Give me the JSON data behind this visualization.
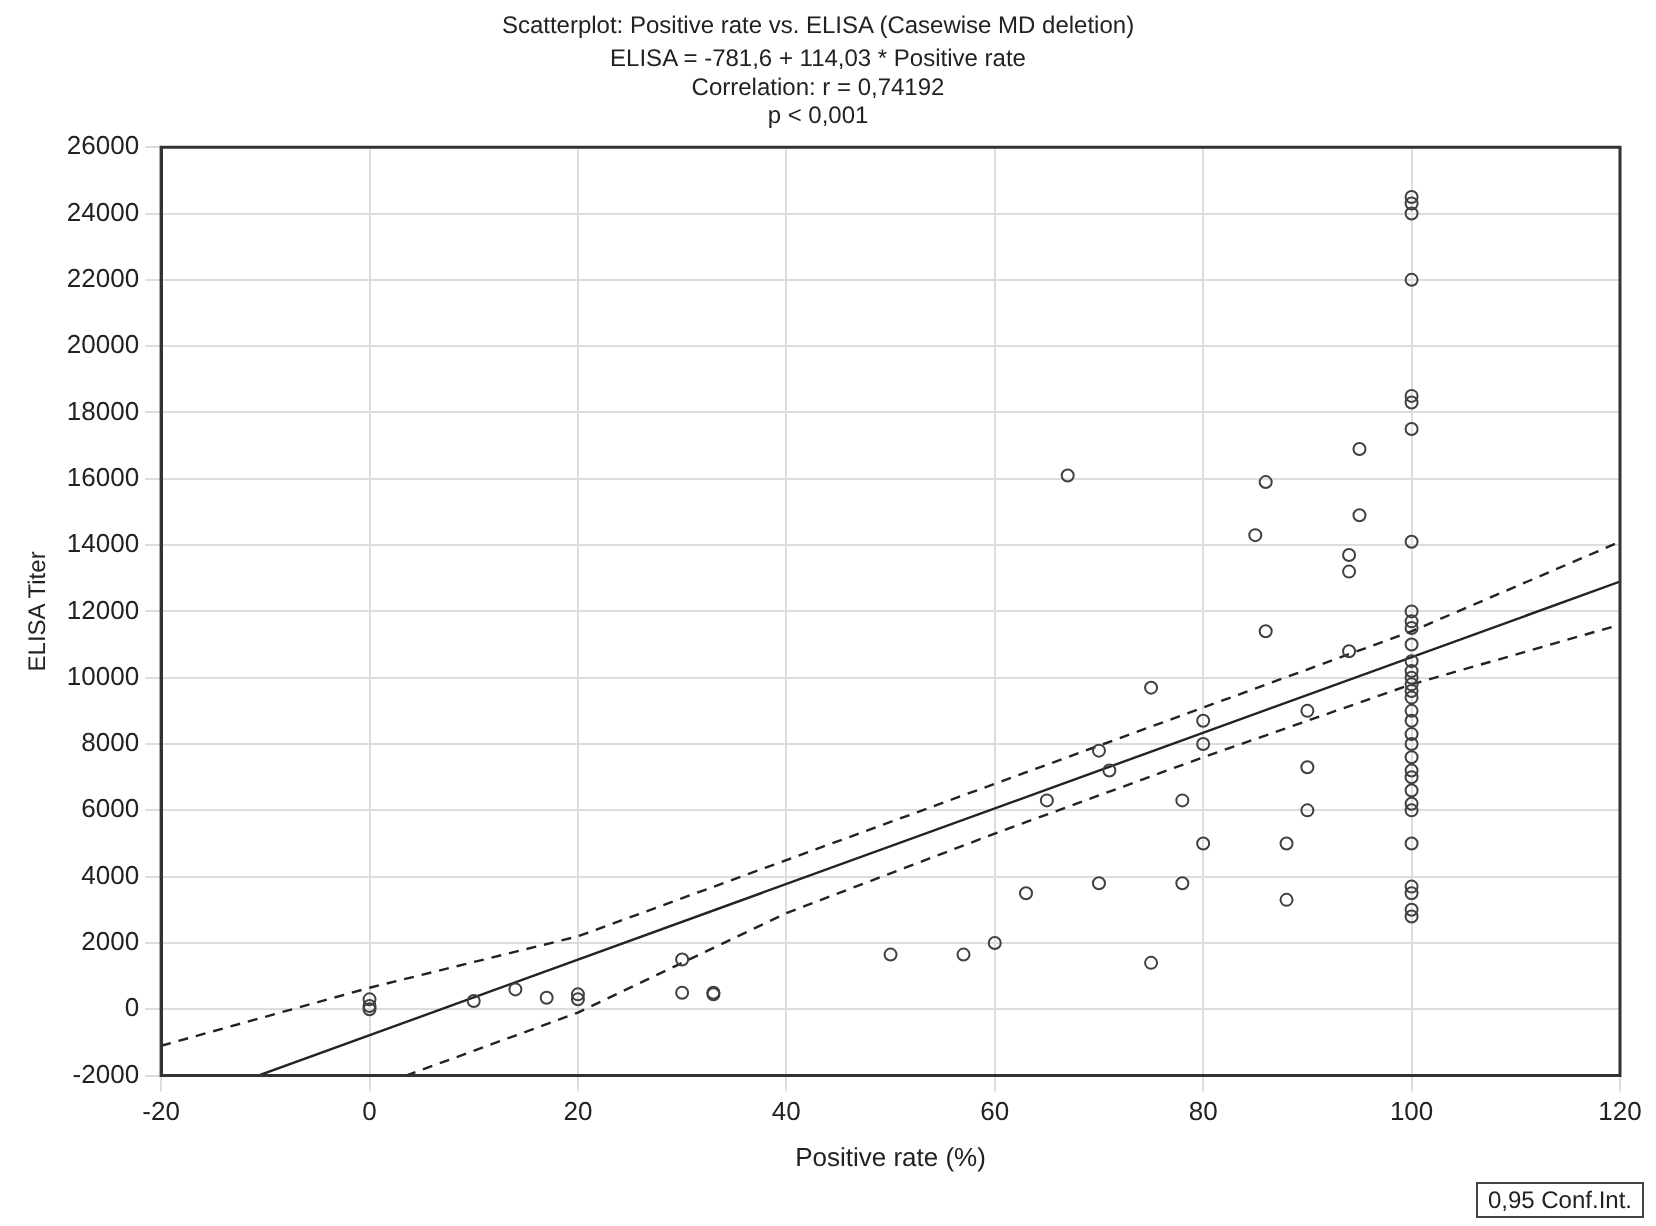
{
  "chart_data": {
    "type": "scatter",
    "title": "Scatterplot: Positive rate vs. ELISA (Casewise MD deletion)",
    "subtitle": "ELISA = -781,6 + 114,03 * Positive rate",
    "annotations": [
      "Correlation: r = 0,74192",
      "p < 0,001",
      "0,95 Conf.Int."
    ],
    "xlabel": "Positive rate (%)",
    "ylabel": "ELISA Titer",
    "xlim": [
      -20,
      120
    ],
    "xticks": [
      -20,
      0,
      20,
      40,
      60,
      80,
      100,
      120
    ],
    "ylim": [
      -2000,
      26000
    ],
    "yticks": [
      -2000,
      0,
      2000,
      4000,
      6000,
      8000,
      10000,
      12000,
      14000,
      16000,
      18000,
      20000,
      22000,
      24000,
      26000
    ],
    "grid": true,
    "marker": "circle",
    "series": [
      {
        "color": "#404040",
        "x": [
          0,
          0,
          0,
          10,
          14,
          17,
          20,
          20,
          30,
          30,
          33,
          33,
          50,
          57,
          60,
          63,
          65,
          67,
          70,
          70,
          71,
          75,
          75,
          78,
          78,
          80,
          80,
          80,
          85,
          86,
          86,
          88,
          88,
          90,
          90,
          90,
          94,
          94,
          94,
          95,
          95,
          100,
          100,
          100,
          100,
          100,
          100,
          100,
          100,
          100,
          100,
          100,
          100,
          100,
          100,
          100,
          100,
          100,
          100,
          100,
          100,
          100,
          100,
          100,
          100,
          100,
          100,
          100,
          100,
          100,
          100,
          100,
          100,
          100
        ],
        "values": [
          300,
          100,
          0,
          250,
          600,
          350,
          450,
          300,
          1500,
          500,
          500,
          450,
          1650,
          1650,
          2000,
          3500,
          6300,
          16100,
          3800,
          7800,
          7200,
          9700,
          1400,
          3800,
          6300,
          8700,
          8000,
          5000,
          14300,
          15900,
          11400,
          5000,
          3300,
          9000,
          7300,
          6000,
          13700,
          13200,
          10800,
          16900,
          14900,
          24500,
          24300,
          24000,
          22000,
          18500,
          18300,
          17500,
          14100,
          12000,
          11700,
          11500,
          11000,
          10500,
          10200,
          10000,
          9800,
          9600,
          9400,
          9000,
          8700,
          8300,
          8000,
          7600,
          7200,
          7000,
          6600,
          6200,
          6000,
          5000,
          3700,
          3500,
          3000,
          2800
        ]
      },
      {
        "type": "line",
        "color": "#222222",
        "line_style": "solid",
        "marker": "none",
        "x": [
          -10.5,
          120
        ],
        "values": [
          -1980,
          12900
        ]
      },
      {
        "type": "line",
        "color": "#222222",
        "line_style": "dashed",
        "marker": "none",
        "x": [
          -20,
          0,
          20,
          40,
          60,
          80,
          100,
          120
        ],
        "values": [
          -1100,
          650,
          2200,
          4500,
          6800,
          9100,
          11400,
          14100
        ]
      },
      {
        "type": "line",
        "color": "#222222",
        "line_style": "dashed",
        "marker": "none",
        "x": [
          3.5,
          20,
          40,
          60,
          80,
          100,
          120
        ],
        "values": [
          -2000,
          -100,
          2900,
          5300,
          7600,
          9800,
          11600
        ]
      }
    ]
  }
}
